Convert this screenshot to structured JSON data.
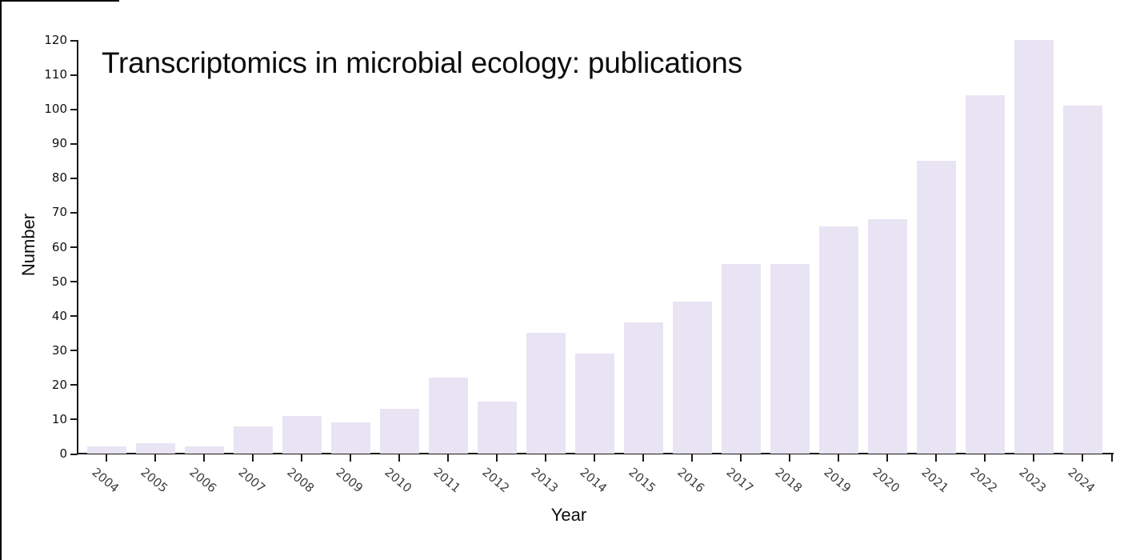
{
  "chart_data": {
    "type": "bar",
    "title": "Transcriptomics in microbial ecology: publications",
    "xlabel": "Year",
    "ylabel": "Number",
    "categories": [
      "2004",
      "2005",
      "2006",
      "2007",
      "2008",
      "2009",
      "2010",
      "2011",
      "2012",
      "2013",
      "2014",
      "2015",
      "2016",
      "2017",
      "2018",
      "2019",
      "2020",
      "2021",
      "2022",
      "2023",
      "2024"
    ],
    "values": [
      2,
      3,
      2,
      8,
      11,
      9,
      13,
      22,
      15,
      35,
      29,
      38,
      44,
      55,
      55,
      66,
      68,
      85,
      104,
      120,
      101
    ],
    "yticks": [
      0,
      10,
      20,
      30,
      40,
      50,
      60,
      70,
      80,
      90,
      100,
      110,
      120
    ],
    "ylim": [
      0,
      120
    ],
    "grid": "off",
    "legend": "none",
    "bar_color": "#e9e4f4",
    "axis_color": "#1a1a1a",
    "ytick_label_color": "#111111",
    "xtick_label_color": "#3d3d3d",
    "title_color": "#0d0d0d",
    "background_color": "#ffffff"
  }
}
